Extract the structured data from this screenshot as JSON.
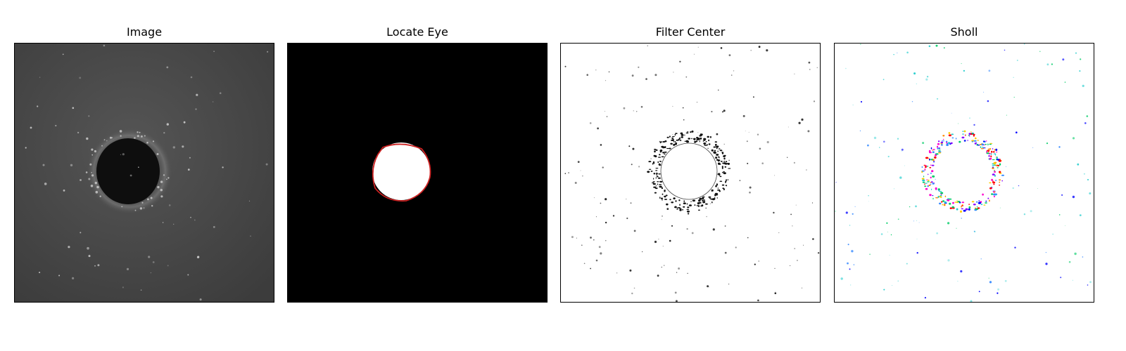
{
  "panels": [
    {
      "title": "Image"
    },
    {
      "title": "Locate Eye"
    },
    {
      "title": "Filter Center"
    },
    {
      "title": "Sholl"
    }
  ],
  "colors": {
    "background": "#ffffff",
    "microscopy_gray": "#4a4a4a",
    "eye_dark": "#0e0e0e",
    "mask_black": "#000000",
    "mask_white": "#ffffff",
    "contour_red": "#cc2222",
    "sholl_palette": [
      "#ff0000",
      "#ff8800",
      "#ffcc00",
      "#00cc66",
      "#22cccc",
      "#3388ff",
      "#0000ff",
      "#8800ff",
      "#ff00cc"
    ]
  }
}
